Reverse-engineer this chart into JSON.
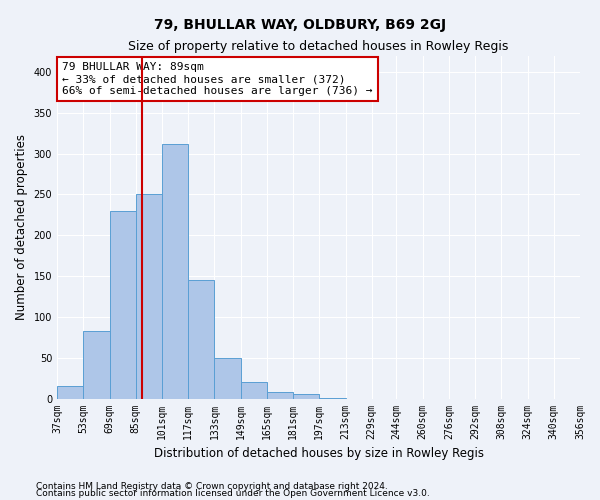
{
  "title": "79, BHULLAR WAY, OLDBURY, B69 2GJ",
  "subtitle": "Size of property relative to detached houses in Rowley Regis",
  "xlabel": "Distribution of detached houses by size in Rowley Regis",
  "ylabel": "Number of detached properties",
  "footnote1": "Contains HM Land Registry data © Crown copyright and database right 2024.",
  "footnote2": "Contains public sector information licensed under the Open Government Licence v3.0.",
  "bin_labels": [
    "37sqm",
    "53sqm",
    "69sqm",
    "85sqm",
    "101sqm",
    "117sqm",
    "133sqm",
    "149sqm",
    "165sqm",
    "181sqm",
    "197sqm",
    "213sqm",
    "229sqm",
    "244sqm",
    "260sqm",
    "276sqm",
    "292sqm",
    "308sqm",
    "324sqm",
    "340sqm",
    "356sqm"
  ],
  "bar_heights": [
    15,
    83,
    230,
    250,
    312,
    145,
    50,
    20,
    8,
    5,
    1,
    0,
    0,
    0,
    0,
    0,
    0,
    0,
    0,
    0
  ],
  "bin_edges": [
    37,
    53,
    69,
    85,
    101,
    117,
    133,
    149,
    165,
    181,
    197,
    213,
    229,
    244,
    260,
    276,
    292,
    308,
    324,
    340,
    356
  ],
  "bar_color": "#aec6e8",
  "bar_edge_color": "#5a9fd4",
  "red_line_x": 89,
  "annotation_line1": "79 BHULLAR WAY: 89sqm",
  "annotation_line2": "← 33% of detached houses are smaller (372)",
  "annotation_line3": "66% of semi-detached houses are larger (736) →",
  "annotation_box_facecolor": "#ffffff",
  "annotation_box_edgecolor": "#cc0000",
  "red_line_color": "#cc0000",
  "ylim_max": 420,
  "yticks": [
    0,
    50,
    100,
    150,
    200,
    250,
    300,
    350,
    400
  ],
  "background_color": "#eef2f9",
  "grid_color": "#ffffff",
  "title_fontsize": 10,
  "subtitle_fontsize": 9,
  "axis_label_fontsize": 8.5,
  "tick_fontsize": 7,
  "annotation_fontsize": 8,
  "footnote_fontsize": 6.5
}
